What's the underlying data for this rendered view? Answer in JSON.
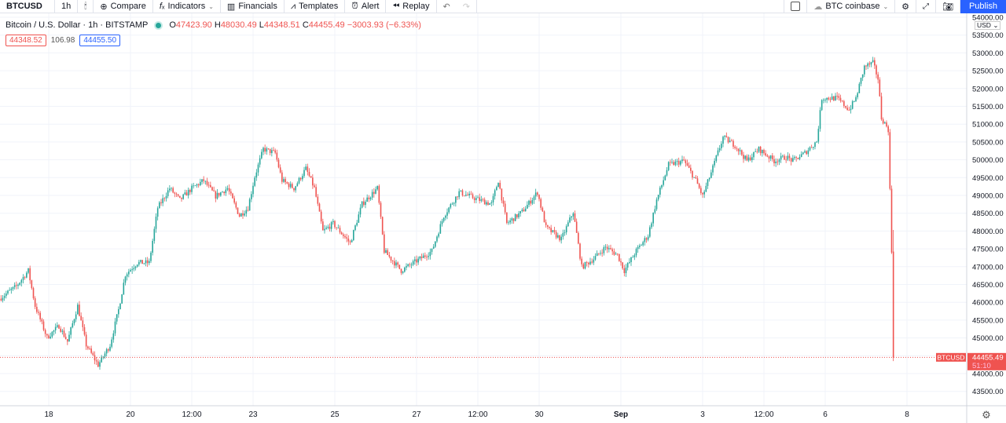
{
  "toolbar": {
    "symbol": "BTCUSD",
    "interval": "1h",
    "compare": "Compare",
    "indicators": "Indicators",
    "financials": "Financials",
    "templates": "Templates",
    "alert": "Alert",
    "replay": "Replay",
    "compare_symbol": "BTC coinbase",
    "publish": "Publish"
  },
  "legend": {
    "title": "Bitcoin / U.S. Dollar · 1h · BITSTAMP",
    "open": "47423.90",
    "high": "48030.49",
    "low": "44348.51",
    "close": "44455.49",
    "change": "−3003.93 (−6.33%)",
    "bid": "44348.52",
    "spread": "106.98",
    "ask": "44455.50"
  },
  "currency": "USD",
  "last_price": {
    "symbol": "BTCUSD",
    "price": "44455.49",
    "countdown": "51:10"
  },
  "colors": {
    "up": "#26a69a",
    "down": "#ef5350",
    "accent": "#2962ff"
  },
  "chart_data": {
    "type": "candlestick",
    "title": "Bitcoin / U.S. Dollar · 1h · BITSTAMP",
    "x_unit": "hours since Aug 18 00:00",
    "ylim": [
      43300,
      54000
    ],
    "y_ticks": [
      54000,
      53500,
      53000,
      52500,
      52000,
      51500,
      51000,
      50500,
      50000,
      49500,
      49000,
      48500,
      48000,
      47500,
      47000,
      46500,
      46000,
      45500,
      45000,
      44500,
      44000,
      43500
    ],
    "x_ticks": [
      {
        "label": "18",
        "h": 0
      },
      {
        "label": "20",
        "h": 48
      },
      {
        "label": "12:00",
        "h": 84
      },
      {
        "label": "23",
        "h": 120
      },
      {
        "label": "25",
        "h": 168
      },
      {
        "label": "27",
        "h": 216
      },
      {
        "label": "12:00",
        "h": 252
      },
      {
        "label": "30",
        "h": 288
      },
      {
        "label": "Sep",
        "h": 336
      },
      {
        "label": "3",
        "h": 384
      },
      {
        "label": "12:00",
        "h": 420
      },
      {
        "label": "6",
        "h": 456
      },
      {
        "label": "8",
        "h": 504
      }
    ],
    "close_path": [
      [
        -29,
        46100
      ],
      [
        -19,
        46450
      ],
      [
        -12,
        46890
      ],
      [
        -8,
        45900
      ],
      [
        -1,
        45010
      ],
      [
        6,
        45340
      ],
      [
        11,
        44900
      ],
      [
        17,
        45900
      ],
      [
        22,
        44800
      ],
      [
        29,
        44240
      ],
      [
        36,
        44800
      ],
      [
        41,
        45790
      ],
      [
        45,
        46780
      ],
      [
        52,
        47110
      ],
      [
        59,
        47110
      ],
      [
        64,
        48650
      ],
      [
        71,
        49200
      ],
      [
        77,
        48870
      ],
      [
        84,
        49200
      ],
      [
        91,
        49420
      ],
      [
        98,
        48980
      ],
      [
        105,
        49200
      ],
      [
        112,
        48430
      ],
      [
        117,
        48650
      ],
      [
        121,
        49530
      ],
      [
        126,
        50300
      ],
      [
        133,
        50190
      ],
      [
        137,
        49420
      ],
      [
        144,
        49200
      ],
      [
        151,
        49750
      ],
      [
        156,
        49200
      ],
      [
        161,
        47990
      ],
      [
        167,
        48210
      ],
      [
        177,
        47660
      ],
      [
        184,
        48760
      ],
      [
        193,
        49200
      ],
      [
        197,
        47440
      ],
      [
        207,
        46890
      ],
      [
        218,
        47220
      ],
      [
        225,
        47440
      ],
      [
        232,
        48430
      ],
      [
        241,
        49090
      ],
      [
        253,
        48870
      ],
      [
        260,
        48760
      ],
      [
        264,
        49420
      ],
      [
        269,
        48210
      ],
      [
        278,
        48540
      ],
      [
        287,
        49090
      ],
      [
        292,
        48100
      ],
      [
        301,
        47770
      ],
      [
        308,
        48540
      ],
      [
        313,
        46990
      ],
      [
        320,
        47220
      ],
      [
        327,
        47550
      ],
      [
        334,
        47330
      ],
      [
        338,
        46890
      ],
      [
        345,
        47440
      ],
      [
        352,
        47880
      ],
      [
        357,
        48870
      ],
      [
        364,
        49860
      ],
      [
        373,
        49970
      ],
      [
        380,
        49420
      ],
      [
        384,
        48980
      ],
      [
        389,
        49640
      ],
      [
        396,
        50630
      ],
      [
        403,
        50410
      ],
      [
        410,
        49970
      ],
      [
        417,
        50300
      ],
      [
        426,
        49970
      ],
      [
        433,
        50080
      ],
      [
        437,
        49970
      ],
      [
        444,
        50190
      ],
      [
        451,
        50520
      ],
      [
        454,
        51730
      ],
      [
        463,
        51730
      ],
      [
        470,
        51400
      ],
      [
        474,
        51730
      ],
      [
        479,
        52610
      ],
      [
        484,
        52720
      ],
      [
        487,
        52280
      ],
      [
        489,
        51180
      ],
      [
        493,
        50850
      ],
      [
        495,
        47423.9
      ]
    ],
    "last_candle": {
      "open": 47423.9,
      "high": 48030.49,
      "low": 44348.51,
      "close": 44455.49
    }
  }
}
